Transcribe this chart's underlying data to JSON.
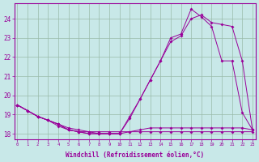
{
  "bg_color": "#c8e8e8",
  "line_color": "#990099",
  "grid_color": "#99bbaa",
  "xlabel": "Windchill (Refroidissement éolien,°C)",
  "hours": [
    0,
    1,
    2,
    3,
    4,
    5,
    6,
    7,
    8,
    9,
    10,
    11,
    12,
    13,
    14,
    15,
    16,
    17,
    18,
    19,
    20,
    21,
    22,
    23
  ],
  "line1": [
    19.5,
    19.2,
    18.9,
    18.7,
    18.4,
    18.2,
    18.1,
    18.1,
    18.1,
    18.1,
    18.1,
    18.1,
    18.1,
    18.1,
    18.1,
    18.1,
    18.1,
    18.1,
    18.1,
    18.1,
    18.1,
    18.1,
    18.1,
    18.1
  ],
  "line2": [
    19.5,
    19.2,
    18.9,
    18.7,
    18.5,
    18.3,
    18.2,
    18.1,
    18.0,
    18.0,
    18.0,
    18.1,
    18.2,
    18.3,
    18.3,
    18.3,
    18.3,
    18.3,
    18.3,
    18.3,
    18.3,
    18.3,
    18.3,
    18.2
  ],
  "line3": [
    19.5,
    19.2,
    18.9,
    18.7,
    18.5,
    18.2,
    18.1,
    18.0,
    18.0,
    18.0,
    18.0,
    18.9,
    19.8,
    20.8,
    21.8,
    23.0,
    23.2,
    24.5,
    24.1,
    23.6,
    21.8,
    21.8,
    19.1,
    18.2
  ],
  "line4": [
    19.5,
    19.2,
    18.9,
    18.7,
    18.5,
    18.2,
    18.1,
    18.0,
    18.0,
    18.0,
    18.0,
    18.8,
    19.8,
    20.8,
    21.8,
    22.8,
    23.1,
    24.0,
    24.2,
    23.8,
    23.7,
    23.6,
    21.8,
    18.2
  ],
  "ylim": [
    17.7,
    24.8
  ],
  "xlim": [
    -0.3,
    23.3
  ],
  "yticks": [
    18,
    19,
    20,
    21,
    22,
    23,
    24
  ],
  "figw": 3.2,
  "figh": 2.0,
  "dpi": 100
}
